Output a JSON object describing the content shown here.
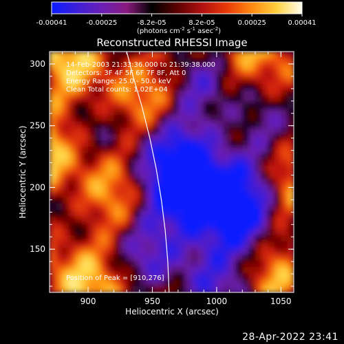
{
  "colorbar": {
    "tick_labels": [
      "-0.00041",
      "-0.00025",
      "-8.2e-05",
      "8.2e-05",
      "0.00025",
      "0.00041"
    ],
    "unit_label": "(photons cm",
    "unit_exp1": "-2",
    "unit_mid": " s",
    "unit_exp2": "-1",
    "unit_end": " asec",
    "unit_exp3": "-2",
    "unit_close": ")",
    "stops": [
      "#0b1cff",
      "#3d1fd9",
      "#6a1fb5",
      "#8a1a80",
      "#000000",
      "#5a0000",
      "#b01010",
      "#e83a08",
      "#ff8a10",
      "#ffd040",
      "#fffff0"
    ]
  },
  "chart_data": {
    "type": "heatmap",
    "title": "Reconstructed RHESSI Image",
    "xlabel": "Heliocentric X (arcsec)",
    "ylabel": "Heliocentric Y (arcsec)",
    "xlim": [
      870,
      1060
    ],
    "ylim": [
      115,
      310
    ],
    "xticks": [
      900,
      950,
      1000,
      1050
    ],
    "yticks": [
      150,
      200,
      250,
      300
    ],
    "value_range": [
      -0.00041,
      0.00041
    ],
    "limb_curve": [
      [
        930,
        310
      ],
      [
        935,
        290
      ],
      [
        942,
        265
      ],
      [
        948,
        240
      ],
      [
        953,
        215
      ],
      [
        957,
        190
      ],
      [
        960,
        165
      ],
      [
        962,
        140
      ],
      [
        963,
        115
      ]
    ],
    "annotations": [
      "14-Feb-2003 21:33:36.000 to 21:39:38.000",
      "Detectors: 3F 4F 5F 6F 7F 8F, Att 0",
      "Energy Range: 25.0 - 50.0 keV",
      "Clean    Total counts: 1.02E+04"
    ],
    "peak_label": "Position of Peak = [910,276]"
  },
  "footer": {
    "timestamp": "28-Apr-2022 23:41"
  }
}
